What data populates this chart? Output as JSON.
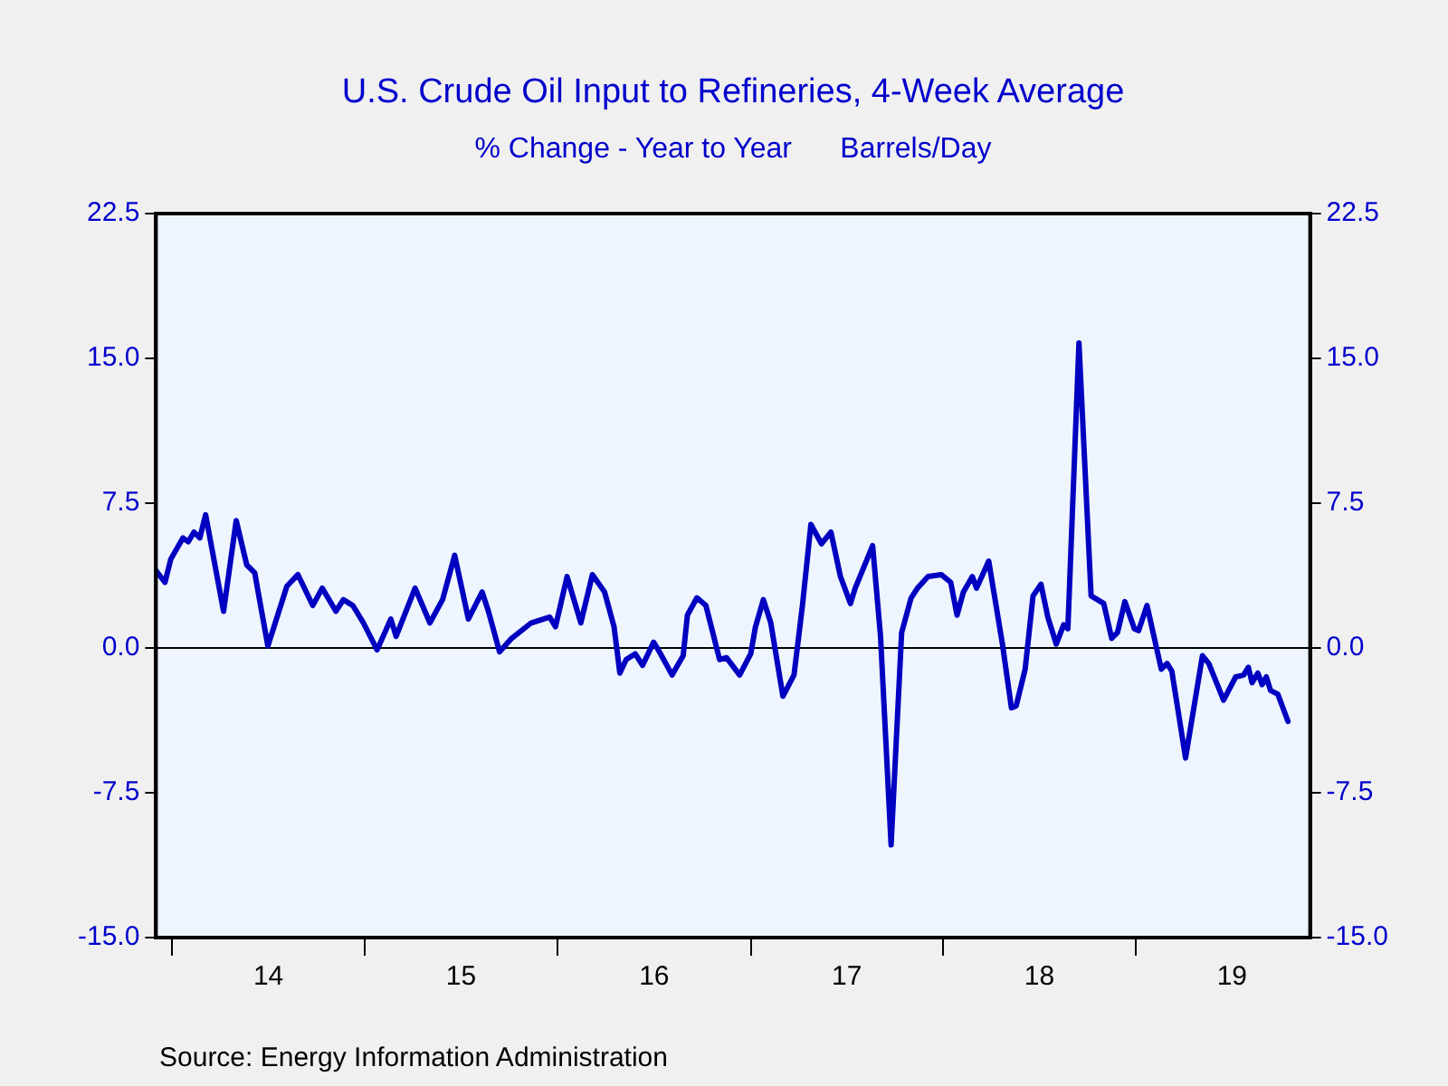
{
  "chart_data": {
    "type": "line",
    "title": "U.S. Crude Oil Input to Refineries, 4-Week Average",
    "subtitle": "% Change - Year to Year      Barrels/Day",
    "annotations": [
      "Source:  Energy Information Administration"
    ],
    "x": [
      "2013-12-01",
      "2013-12-18",
      "2013-12-29",
      "2014-01-21",
      "2014-01-31",
      "2014-02-11",
      "2014-02-22",
      "2014-03-05",
      "2014-04-08",
      "2014-05-02",
      "2014-05-22",
      "2014-06-06",
      "2014-07-01",
      "2014-08-06",
      "2014-08-27",
      "2014-09-24",
      "2014-10-12",
      "2014-11-07",
      "2014-11-21",
      "2014-12-09",
      "2014-12-29",
      "2015-01-24",
      "2015-02-19",
      "2015-03-01",
      "2015-04-06",
      "2015-05-04",
      "2015-05-28",
      "2015-06-20",
      "2015-07-16",
      "2015-08-11",
      "2015-08-23",
      "2015-09-13",
      "2015-10-06",
      "2015-11-12",
      "2015-12-17",
      "2015-12-28",
      "2016-01-19",
      "2016-02-14",
      "2016-03-07",
      "2016-03-30",
      "2016-04-17",
      "2016-04-28",
      "2016-05-10",
      "2016-05-27",
      "2016-06-10",
      "2016-07-01",
      "2016-07-12",
      "2016-08-05",
      "2016-08-26",
      "2016-09-03",
      "2016-09-21",
      "2016-10-08",
      "2016-11-03",
      "2016-11-16",
      "2016-12-11",
      "2017-01-01",
      "2017-01-10",
      "2017-01-25",
      "2017-02-08",
      "2017-03-03",
      "2017-03-24",
      "2017-04-09",
      "2017-04-25",
      "2017-05-15",
      "2017-06-02",
      "2017-06-20",
      "2017-07-09",
      "2017-07-18",
      "2017-08-05",
      "2017-08-20",
      "2017-09-04",
      "2017-09-24",
      "2017-10-14",
      "2017-11-01",
      "2017-11-13",
      "2017-12-03",
      "2017-12-28",
      "2018-01-15",
      "2018-01-27",
      "2018-02-08",
      "2018-02-25",
      "2018-03-05",
      "2018-03-28",
      "2018-04-23",
      "2018-05-10",
      "2018-05-19",
      "2018-06-05",
      "2018-06-20",
      "2018-07-05",
      "2018-07-18",
      "2018-08-03",
      "2018-08-17",
      "2018-08-25",
      "2018-09-15",
      "2018-10-08",
      "2018-11-01",
      "2018-11-16",
      "2018-11-27",
      "2018-12-11",
      "2018-12-29",
      "2019-01-06",
      "2019-01-22",
      "2019-02-18",
      "2019-03-01",
      "2019-03-10",
      "2019-04-05",
      "2019-05-07",
      "2019-05-19",
      "2019-06-16",
      "2019-07-09",
      "2019-07-24",
      "2019-08-02",
      "2019-08-09",
      "2019-08-20",
      "2019-08-28",
      "2019-09-05",
      "2019-09-13",
      "2019-09-27",
      "2019-10-16"
    ],
    "series": [
      {
        "color": "#0000c0",
        "values": [
          4.0,
          3.4,
          4.6,
          5.7,
          5.5,
          6.0,
          5.7,
          6.9,
          1.9,
          6.6,
          4.3,
          3.9,
          0.1,
          3.2,
          3.8,
          2.2,
          3.1,
          1.9,
          2.5,
          2.2,
          1.3,
          -0.1,
          1.5,
          0.6,
          3.1,
          1.3,
          2.5,
          4.8,
          1.5,
          2.9,
          1.9,
          -0.2,
          0.5,
          1.3,
          1.6,
          1.1,
          3.7,
          1.3,
          3.8,
          2.9,
          1.1,
          -1.3,
          -0.6,
          -0.3,
          -0.9,
          0.3,
          -0.2,
          -1.4,
          -0.4,
          1.7,
          2.6,
          2.2,
          -0.6,
          -0.5,
          -1.4,
          -0.3,
          1.1,
          2.5,
          1.3,
          -2.5,
          -1.4,
          2.2,
          6.4,
          5.4,
          6.0,
          3.7,
          2.3,
          3.1,
          4.3,
          5.3,
          0.6,
          -10.2,
          0.8,
          2.6,
          3.1,
          3.7,
          3.8,
          3.4,
          1.7,
          2.9,
          3.7,
          3.1,
          4.5,
          0.2,
          -3.1,
          -3.0,
          -1.1,
          2.7,
          3.3,
          1.6,
          0.2,
          1.2,
          1.0,
          15.8,
          2.7,
          2.3,
          0.5,
          0.8,
          2.4,
          1.0,
          0.9,
          2.2,
          -1.1,
          -0.8,
          -1.2,
          -5.7,
          -0.4,
          -0.8,
          -2.7,
          -1.5,
          -1.4,
          -1.0,
          -1.8,
          -1.3,
          -1.9,
          -1.5,
          -2.2,
          -2.4,
          -3.8
        ]
      }
    ],
    "xlim": [
      "2013-12-01",
      "2019-11-27"
    ],
    "xticks": [
      {
        "value": "2014-01-01",
        "label": null
      },
      {
        "value": "2014-07-02",
        "label": "14"
      },
      {
        "value": "2015-01-01",
        "label": null
      },
      {
        "value": "2015-07-02",
        "label": "15"
      },
      {
        "value": "2016-01-01",
        "label": null
      },
      {
        "value": "2016-07-02",
        "label": "16"
      },
      {
        "value": "2017-01-01",
        "label": null
      },
      {
        "value": "2017-07-02",
        "label": "17"
      },
      {
        "value": "2018-01-01",
        "label": null
      },
      {
        "value": "2018-07-02",
        "label": "18"
      },
      {
        "value": "2019-01-01",
        "label": null
      },
      {
        "value": "2019-07-02",
        "label": "19"
      }
    ],
    "ylim": [
      -15,
      22.5
    ],
    "yticks": [
      {
        "value": -15,
        "label": "-15.0"
      },
      {
        "value": -7.5,
        "label": "-7.5"
      },
      {
        "value": 0,
        "label": "0.0"
      },
      {
        "value": 7.5,
        "label": "7.5"
      },
      {
        "value": 15,
        "label": "15.0"
      },
      22.5
    ],
    "y2lim": [
      -15,
      22.5
    ],
    "y2ticks": [
      {
        "value": -15,
        "label": "-15.0"
      },
      {
        "value": -7.5,
        "label": "-7.5"
      },
      {
        "value": 0,
        "label": "0.0"
      },
      {
        "value": 7.5,
        "label": "7.5"
      },
      {
        "value": 15,
        "label": "15.0"
      },
      22.5
    ],
    "ref_lines": [
      {
        "axis": "y",
        "value": 0,
        "color": "#000000"
      }
    ],
    "grid": false,
    "legend": false,
    "marker": "none",
    "line_style": "solid"
  }
}
